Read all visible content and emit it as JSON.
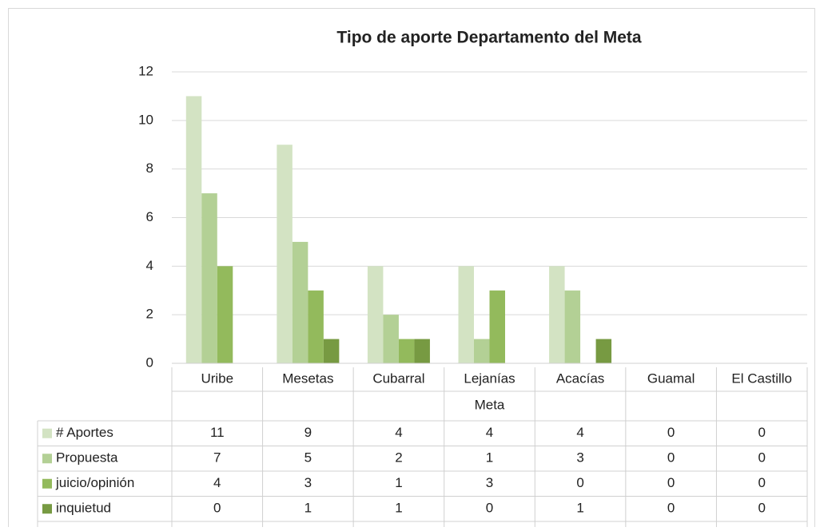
{
  "chart_data": {
    "type": "bar",
    "title": "Tipo de aporte Departamento del Meta",
    "categories": [
      "Uribe",
      "Mesetas",
      "Cubarral",
      "Lejanías",
      "Acacías",
      "Guamal",
      "El Castillo"
    ],
    "group_label": "Meta",
    "series": [
      {
        "name": "# Aportes",
        "color": "#d3e3c3",
        "values": [
          11,
          9,
          4,
          4,
          4,
          0,
          0
        ]
      },
      {
        "name": "Propuesta",
        "color": "#b3d095",
        "values": [
          7,
          5,
          2,
          1,
          3,
          0,
          0
        ]
      },
      {
        "name": "juicio/opinión",
        "color": "#93ba5c",
        "values": [
          4,
          3,
          1,
          3,
          0,
          0,
          0
        ]
      },
      {
        "name": "inquietud",
        "color": "#779a42",
        "values": [
          0,
          1,
          1,
          0,
          1,
          0,
          0
        ]
      }
    ],
    "ylim": [
      0,
      12
    ],
    "yticks": [
      0,
      2,
      4,
      6,
      8,
      10,
      12
    ],
    "grid": true
  }
}
